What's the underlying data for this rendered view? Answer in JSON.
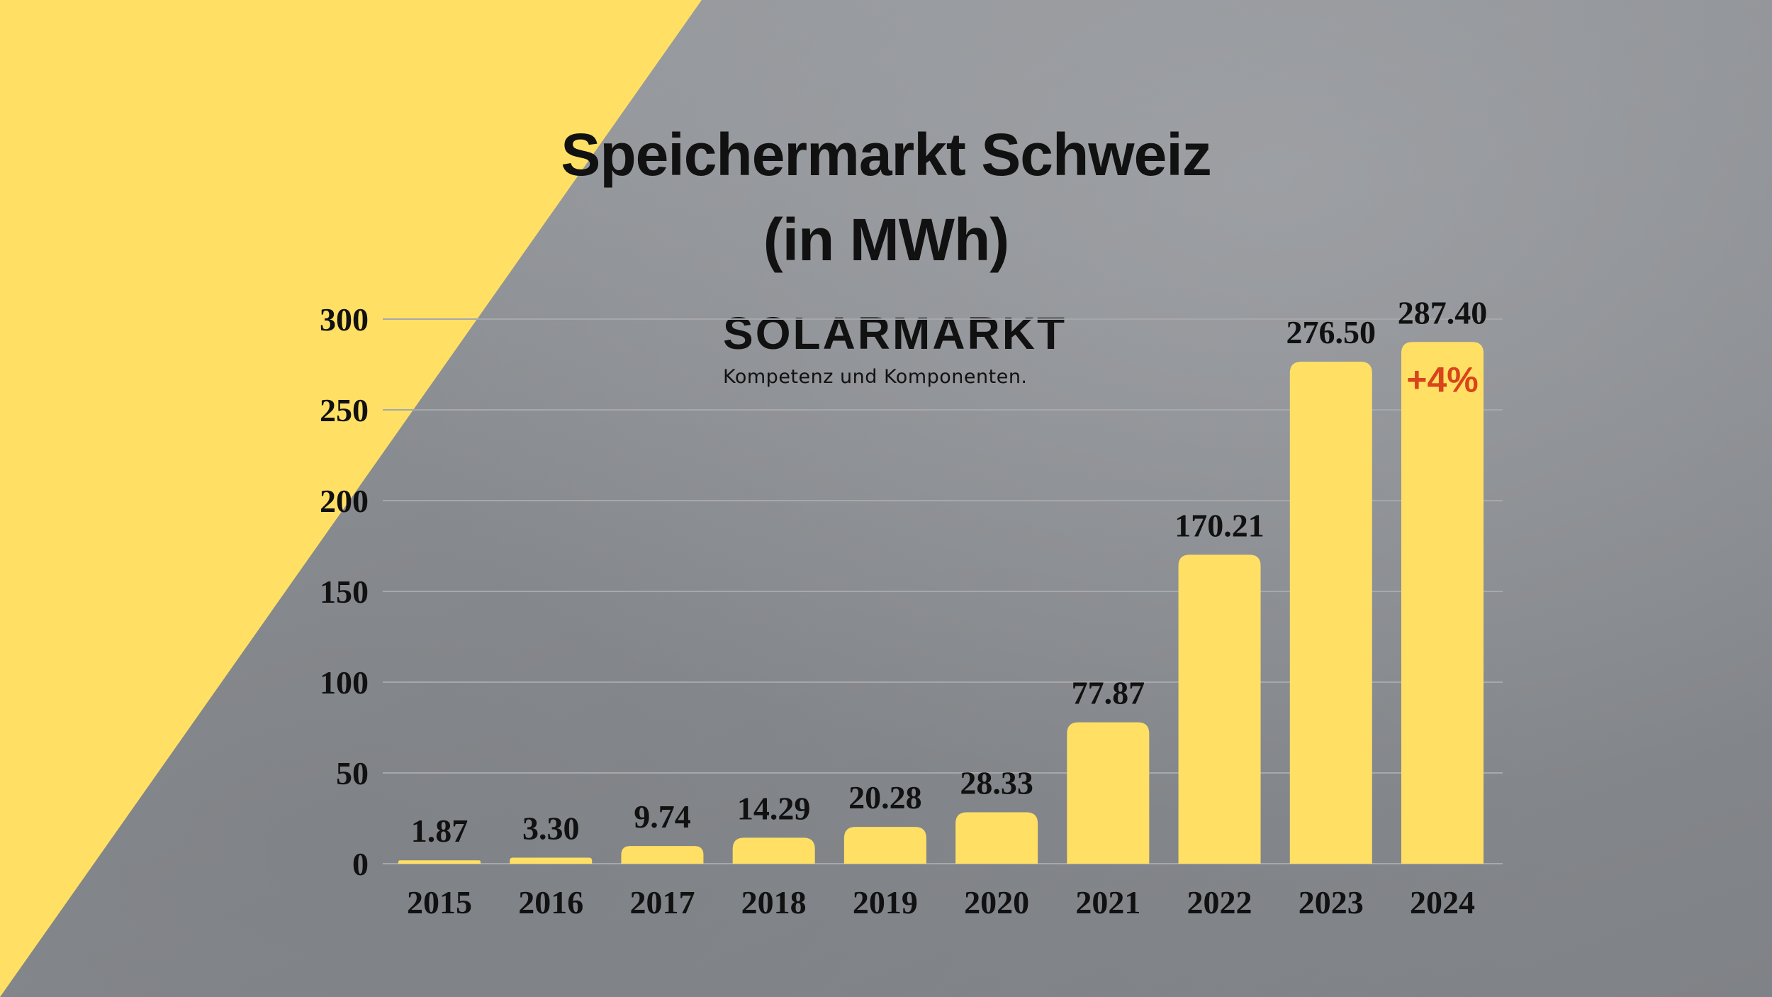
{
  "title_line1": "Speichermarkt Schweiz",
  "title_line2": "(in MWh)",
  "logo": {
    "name": "SOLARMARKT",
    "tagline": "Kompetenz und Komponenten."
  },
  "colors": {
    "bar": "#ffe065",
    "accent_triangle": "#ffe065",
    "text": "#111111",
    "highlight": "#d9441a",
    "grid": "#a6a8ab"
  },
  "chart_data": {
    "type": "bar",
    "categories": [
      "2015",
      "2016",
      "2017",
      "2018",
      "2019",
      "2020",
      "2021",
      "2022",
      "2023",
      "2024"
    ],
    "values": [
      1.87,
      3.3,
      9.74,
      14.29,
      20.28,
      28.33,
      77.87,
      170.21,
      276.5,
      287.4
    ],
    "data_labels": [
      "1.87",
      "3.30",
      "9.74",
      "14.29",
      "20.28",
      "28.33",
      "77.87",
      "170.21",
      "276.50",
      "287.40"
    ],
    "yticks": [
      0,
      50,
      100,
      150,
      200,
      250,
      300
    ],
    "ylim": [
      0,
      300
    ],
    "grid": true,
    "annotation": {
      "category": "2024",
      "text": "+4%"
    }
  }
}
